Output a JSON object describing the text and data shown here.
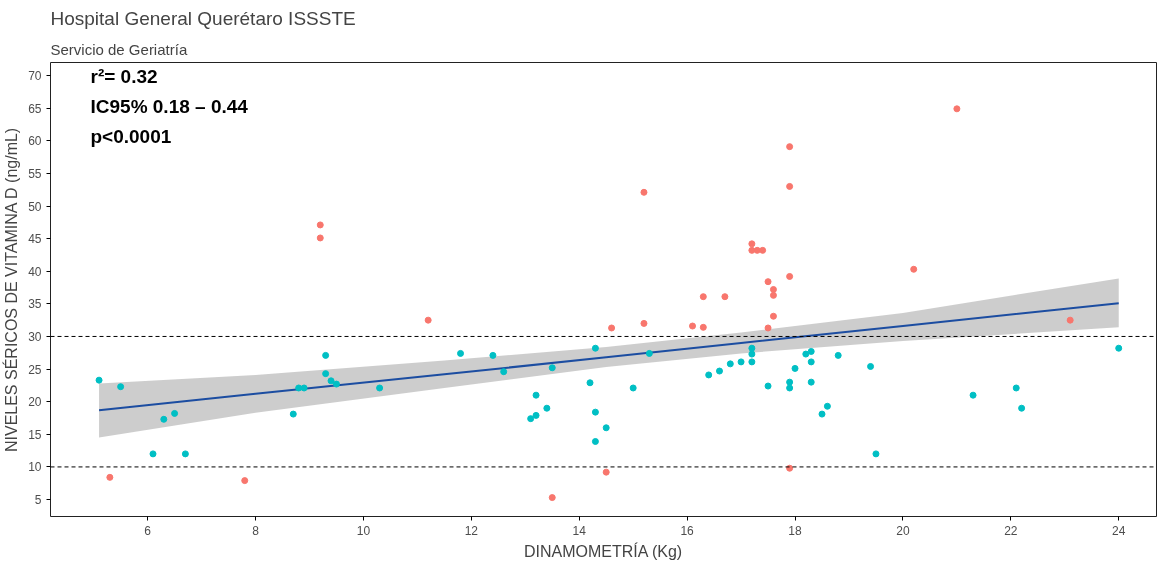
{
  "chart_data": {
    "type": "scatter",
    "title": "Hospital General Querétaro ISSSTE",
    "subtitle": "Servicio de Geriatría",
    "xlabel": "DINAMOMETRÍA (Kg)",
    "ylabel": "NIVELES SÉRICOS DE VITAMINA D (ng/mL)",
    "annotations": [
      "r²= 0.32",
      "IC95% 0.18 – 0.44",
      "p<0.0001"
    ],
    "xlim": [
      4.2,
      24.7
    ],
    "ylim": [
      2.4,
      72
    ],
    "xticks": [
      6,
      8,
      10,
      12,
      14,
      16,
      18,
      20,
      22,
      24
    ],
    "yticks": [
      5,
      10,
      15,
      20,
      25,
      30,
      35,
      40,
      45,
      50,
      55,
      60,
      65,
      70
    ],
    "grid": false,
    "ref_lines": [
      {
        "axis": "y",
        "value": 30,
        "color": "#000000",
        "line_style": "dashed"
      },
      {
        "axis": "y",
        "value": 10,
        "color": "#000000",
        "line_style": "dashed"
      }
    ],
    "series": [
      {
        "color": "#f8766d",
        "x": [
          5.3,
          7.8,
          9.2,
          9.2,
          11.2,
          13.5,
          14.5,
          14.6,
          15.2,
          15.2,
          16.1,
          16.3,
          16.3,
          16.7,
          17.2,
          17.2,
          17.3,
          17.4,
          17.5,
          17.5,
          17.6,
          17.6,
          17.6,
          17.9,
          17.9,
          17.9,
          17.9,
          20.2,
          21.0,
          23.1
        ],
        "values": [
          8.4,
          7.9,
          47.1,
          45.1,
          32.5,
          5.3,
          9.2,
          31.3,
          52.1,
          32.0,
          31.6,
          36.1,
          31.4,
          36.1,
          44.2,
          43.2,
          43.2,
          43.2,
          38.4,
          31.3,
          37.2,
          36.3,
          33.1,
          59.1,
          53.0,
          39.2,
          9.8,
          40.3,
          64.9,
          32.5
        ]
      },
      {
        "color": "#00bfc4",
        "x": [
          5.1,
          5.5,
          6.1,
          6.7,
          6.3,
          6.5,
          8.7,
          9.3,
          9.3,
          9.4,
          9.5,
          8.8,
          8.9,
          10.3,
          11.8,
          12.4,
          12.6,
          13.2,
          13.1,
          13.2,
          13.4,
          13.5,
          14.2,
          14.3,
          14.3,
          14.3,
          14.5,
          15.0,
          15.3,
          16.4,
          16.6,
          16.8,
          17.0,
          17.2,
          17.2,
          17.2,
          17.5,
          17.9,
          17.9,
          18.0,
          18.2,
          18.3,
          18.3,
          18.3,
          18.5,
          18.6,
          18.8,
          19.4,
          19.5,
          21.3,
          22.1,
          22.2,
          24.0
        ],
        "values": [
          23.3,
          22.3,
          12.0,
          12.0,
          17.3,
          18.2,
          18.1,
          27.1,
          24.3,
          23.2,
          22.7,
          22.1,
          22.1,
          22.1,
          27.4,
          27.1,
          24.6,
          21.0,
          17.4,
          17.9,
          19.0,
          25.2,
          22.9,
          28.2,
          18.4,
          13.9,
          16.0,
          22.1,
          27.4,
          24.1,
          24.7,
          25.8,
          26.1,
          28.2,
          27.3,
          26.1,
          22.4,
          23.0,
          22.1,
          25.1,
          27.3,
          27.7,
          26.1,
          23.0,
          18.1,
          19.3,
          27.1,
          25.4,
          12.0,
          21.0,
          22.1,
          19.0,
          28.2
        ]
      },
      {
        "type": "line",
        "color": "#1c4da1",
        "x": [
          5.1,
          8,
          11.5,
          14.5,
          17,
          20,
          24
        ],
        "values": [
          18.7,
          21.2,
          24.2,
          26.8,
          29.0,
          31.6,
          35.1
        ],
        "lower": [
          14.5,
          18.3,
          22.1,
          25.3,
          27.4,
          29.3,
          31.4
        ],
        "upper": [
          22.8,
          24.1,
          26.3,
          28.4,
          30.6,
          33.6,
          38.9
        ]
      }
    ]
  }
}
